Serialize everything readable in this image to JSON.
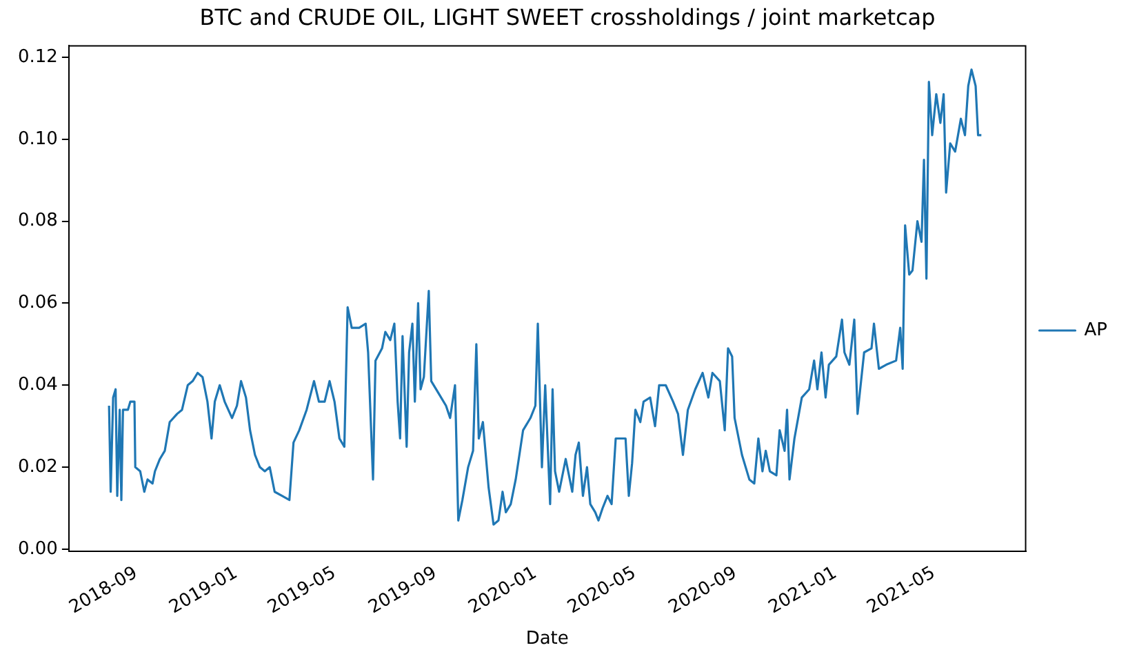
{
  "chart_data": {
    "type": "line",
    "title": "BTC and CRUDE OIL, LIGHT SWEET crossholdings / joint marketcap",
    "xlabel": "Date",
    "x": [
      "2018-07-30",
      "2018-08-01",
      "2018-08-04",
      "2018-08-07",
      "2018-08-09",
      "2018-08-12",
      "2018-08-14",
      "2018-08-16",
      "2018-08-22",
      "2018-08-25",
      "2018-08-30",
      "2018-08-31",
      "2018-09-06",
      "2018-09-11",
      "2018-09-15",
      "2018-09-21",
      "2018-09-24",
      "2018-09-30",
      "2018-10-06",
      "2018-10-12",
      "2018-10-21",
      "2018-10-27",
      "2018-11-03",
      "2018-11-09",
      "2018-11-15",
      "2018-11-21",
      "2018-11-27",
      "2018-12-02",
      "2018-12-06",
      "2018-12-12",
      "2018-12-18",
      "2018-12-27",
      "2019-01-02",
      "2019-01-07",
      "2019-01-13",
      "2019-01-18",
      "2019-01-24",
      "2019-01-30",
      "2019-02-05",
      "2019-02-11",
      "2019-02-17",
      "2019-02-26",
      "2019-03-07",
      "2019-03-12",
      "2019-03-19",
      "2019-03-28",
      "2019-04-06",
      "2019-04-12",
      "2019-04-19",
      "2019-04-25",
      "2019-05-01",
      "2019-05-07",
      "2019-05-13",
      "2019-05-17",
      "2019-05-22",
      "2019-05-31",
      "2019-06-08",
      "2019-06-11",
      "2019-06-17",
      "2019-06-20",
      "2019-06-28",
      "2019-07-02",
      "2019-07-08",
      "2019-07-13",
      "2019-07-17",
      "2019-07-20",
      "2019-07-23",
      "2019-07-28",
      "2019-07-31",
      "2019-08-04",
      "2019-08-07",
      "2019-08-11",
      "2019-08-14",
      "2019-08-18",
      "2019-08-24",
      "2019-08-27",
      "2019-09-05",
      "2019-09-14",
      "2019-09-19",
      "2019-09-25",
      "2019-09-29",
      "2019-10-04",
      "2019-10-11",
      "2019-10-17",
      "2019-10-21",
      "2019-10-24",
      "2019-10-29",
      "2019-11-05",
      "2019-11-11",
      "2019-11-17",
      "2019-11-22",
      "2019-11-26",
      "2019-12-02",
      "2019-12-08",
      "2019-12-17",
      "2019-12-26",
      "2020-01-01",
      "2020-01-04",
      "2020-01-09",
      "2020-01-13",
      "2020-01-19",
      "2020-01-22",
      "2020-01-25",
      "2020-01-30",
      "2020-02-07",
      "2020-02-11",
      "2020-02-15",
      "2020-02-19",
      "2020-02-23",
      "2020-02-28",
      "2020-03-04",
      "2020-03-08",
      "2020-03-14",
      "2020-03-18",
      "2020-03-23",
      "2020-03-29",
      "2020-04-03",
      "2020-04-08",
      "2020-04-12",
      "2020-04-20",
      "2020-04-24",
      "2020-04-28",
      "2020-05-02",
      "2020-05-08",
      "2020-05-12",
      "2020-05-20",
      "2020-05-26",
      "2020-05-31",
      "2020-06-08",
      "2020-06-17",
      "2020-06-23",
      "2020-06-29",
      "2020-07-05",
      "2020-07-14",
      "2020-07-23",
      "2020-07-30",
      "2020-08-04",
      "2020-08-13",
      "2020-08-19",
      "2020-08-23",
      "2020-08-28",
      "2020-08-31",
      "2020-09-09",
      "2020-09-18",
      "2020-09-24",
      "2020-09-29",
      "2020-10-04",
      "2020-10-08",
      "2020-10-13",
      "2020-10-21",
      "2020-10-25",
      "2020-10-31",
      "2020-11-03",
      "2020-11-06",
      "2020-11-12",
      "2020-11-21",
      "2020-11-30",
      "2020-12-06",
      "2020-12-10",
      "2020-12-15",
      "2020-12-20",
      "2020-12-24",
      "2021-01-02",
      "2021-01-09",
      "2021-01-12",
      "2021-01-18",
      "2021-01-24",
      "2021-01-28",
      "2021-02-05",
      "2021-02-14",
      "2021-02-17",
      "2021-02-23",
      "2021-03-04",
      "2021-03-16",
      "2021-03-21",
      "2021-03-24",
      "2021-03-27",
      "2021-04-01",
      "2021-04-05",
      "2021-04-11",
      "2021-04-16",
      "2021-04-19",
      "2021-04-22",
      "2021-04-25",
      "2021-04-29",
      "2021-05-04",
      "2021-05-09",
      "2021-05-13",
      "2021-05-16",
      "2021-05-21",
      "2021-05-27",
      "2021-06-03",
      "2021-06-08",
      "2021-06-12",
      "2021-06-16",
      "2021-06-21",
      "2021-06-24",
      "2021-06-28"
    ],
    "series": [
      {
        "name": "AP",
        "color": "#1f77b4",
        "values": [
          0.035,
          0.014,
          0.037,
          0.039,
          0.013,
          0.034,
          0.012,
          0.034,
          0.034,
          0.036,
          0.036,
          0.02,
          0.019,
          0.014,
          0.017,
          0.016,
          0.019,
          0.022,
          0.024,
          0.031,
          0.033,
          0.034,
          0.04,
          0.041,
          0.043,
          0.042,
          0.036,
          0.027,
          0.036,
          0.04,
          0.036,
          0.032,
          0.035,
          0.041,
          0.037,
          0.029,
          0.023,
          0.02,
          0.019,
          0.02,
          0.014,
          0.013,
          0.012,
          0.026,
          0.029,
          0.034,
          0.041,
          0.036,
          0.036,
          0.041,
          0.036,
          0.027,
          0.025,
          0.059,
          0.054,
          0.054,
          0.055,
          0.048,
          0.017,
          0.046,
          0.049,
          0.053,
          0.051,
          0.055,
          0.036,
          0.027,
          0.052,
          0.025,
          0.048,
          0.055,
          0.036,
          0.06,
          0.039,
          0.042,
          0.063,
          0.041,
          0.038,
          0.035,
          0.032,
          0.04,
          0.007,
          0.012,
          0.02,
          0.024,
          0.05,
          0.027,
          0.031,
          0.015,
          0.006,
          0.007,
          0.014,
          0.009,
          0.011,
          0.017,
          0.029,
          0.032,
          0.035,
          0.055,
          0.02,
          0.04,
          0.011,
          0.039,
          0.019,
          0.014,
          0.022,
          0.018,
          0.014,
          0.023,
          0.026,
          0.013,
          0.02,
          0.011,
          0.009,
          0.007,
          0.01,
          0.013,
          0.011,
          0.027,
          0.027,
          0.027,
          0.013,
          0.021,
          0.034,
          0.031,
          0.036,
          0.037,
          0.03,
          0.04,
          0.04,
          0.036,
          0.033,
          0.023,
          0.034,
          0.039,
          0.043,
          0.037,
          0.043,
          0.041,
          0.029,
          0.049,
          0.047,
          0.032,
          0.023,
          0.017,
          0.016,
          0.027,
          0.019,
          0.024,
          0.019,
          0.018,
          0.029,
          0.024,
          0.034,
          0.017,
          0.027,
          0.037,
          0.039,
          0.046,
          0.039,
          0.048,
          0.037,
          0.045,
          0.047,
          0.056,
          0.048,
          0.045,
          0.056,
          0.033,
          0.048,
          0.049,
          0.055,
          0.044,
          0.045,
          0.046,
          0.054,
          0.044,
          0.079,
          0.067,
          0.068,
          0.08,
          0.075,
          0.095,
          0.066,
          0.114,
          0.101,
          0.111,
          0.104,
          0.111,
          0.087,
          0.099,
          0.097,
          0.105,
          0.101,
          0.113,
          0.117,
          0.113,
          0.101,
          0.101
        ]
      }
    ],
    "xlim": [
      "2018-06-11",
      "2021-08-21"
    ],
    "xticks": [
      {
        "value": "2018-09",
        "label": "2018-09"
      },
      {
        "value": "2019-01",
        "label": "2019-01"
      },
      {
        "value": "2019-05",
        "label": "2019-05"
      },
      {
        "value": "2019-09",
        "label": "2019-09"
      },
      {
        "value": "2020-01",
        "label": "2020-01"
      },
      {
        "value": "2020-05",
        "label": "2020-05"
      },
      {
        "value": "2020-09",
        "label": "2020-09"
      },
      {
        "value": "2021-01",
        "label": "2021-01"
      },
      {
        "value": "2021-05",
        "label": "2021-05"
      }
    ],
    "ylim": [
      -0.0006,
      0.1228
    ],
    "yticks": [
      {
        "value": 0,
        "label": "0.00"
      },
      {
        "value": 0.02,
        "label": "0.02"
      },
      {
        "value": 0.04,
        "label": "0.04"
      },
      {
        "value": 0.06,
        "label": "0.06"
      },
      {
        "value": 0.08,
        "label": "0.08"
      },
      {
        "value": 0.1,
        "label": "0.10"
      },
      {
        "value": 0.12,
        "label": "0.12"
      }
    ],
    "grid": false,
    "legend": "right",
    "marker": "none",
    "line_style": "solid"
  }
}
